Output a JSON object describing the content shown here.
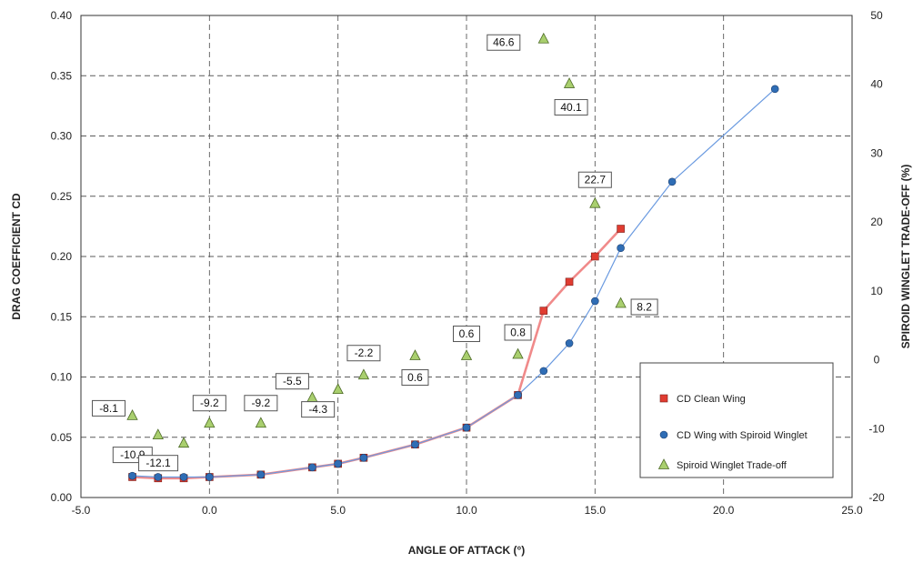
{
  "chart_data": {
    "type": "line",
    "xlabel": "ANGLE OF ATTACK (°)",
    "ylabel": "DRAG COEFFICIENT CD",
    "y2label": "SPIROID WINGLET TRADE-OFF (%)",
    "xlim": [
      -5.0,
      25.0
    ],
    "ylim": [
      0.0,
      0.4
    ],
    "y2lim": [
      -20,
      50
    ],
    "x_ticks": [
      "-5.0",
      "0.0",
      "5.0",
      "10.0",
      "15.0",
      "20.0",
      "25.0"
    ],
    "y_ticks": [
      "0.00",
      "0.05",
      "0.10",
      "0.15",
      "0.20",
      "0.25",
      "0.30",
      "0.35",
      "0.40"
    ],
    "y2_ticks": [
      "-20",
      "-10",
      "0",
      "10",
      "20",
      "30",
      "40",
      "50"
    ],
    "grid": true,
    "legend_position": "bottom-right",
    "series": [
      {
        "name": "CD Clean Wing",
        "axis": "left",
        "color": "#f08a8a",
        "marker_color": "#e03c31",
        "marker": "square",
        "points": [
          [
            -3,
            0.017
          ],
          [
            -2,
            0.016
          ],
          [
            -1,
            0.016
          ],
          [
            0,
            0.017
          ],
          [
            2,
            0.019
          ],
          [
            4,
            0.025
          ],
          [
            5,
            0.028
          ],
          [
            6,
            0.033
          ],
          [
            8,
            0.044
          ],
          [
            10,
            0.058
          ],
          [
            12,
            0.085
          ],
          [
            13,
            0.155
          ],
          [
            14,
            0.179
          ],
          [
            15,
            0.2
          ],
          [
            16,
            0.223
          ]
        ]
      },
      {
        "name": "CD Wing with Spiroid Winglet",
        "axis": "left",
        "color": "#6a9ae0",
        "marker_color": "#2f6db5",
        "marker": "circle",
        "points": [
          [
            -3,
            0.018
          ],
          [
            -2,
            0.017
          ],
          [
            -1,
            0.017
          ],
          [
            0,
            0.017
          ],
          [
            2,
            0.019
          ],
          [
            4,
            0.025
          ],
          [
            5,
            0.028
          ],
          [
            6,
            0.033
          ],
          [
            8,
            0.044
          ],
          [
            10,
            0.058
          ],
          [
            12,
            0.085
          ],
          [
            13,
            0.105
          ],
          [
            14,
            0.128
          ],
          [
            15,
            0.163
          ],
          [
            16,
            0.207
          ],
          [
            18,
            0.262
          ],
          [
            22,
            0.339
          ]
        ]
      },
      {
        "name": "Spiroid Winglet Trade-off",
        "axis": "right",
        "color": "#a9cf6e",
        "marker": "triangle",
        "points": [
          [
            -3,
            -8.1
          ],
          [
            -2,
            -10.9
          ],
          [
            -1,
            -12.1
          ],
          [
            0,
            -9.2
          ],
          [
            2,
            -9.2
          ],
          [
            4,
            -5.5
          ],
          [
            5,
            -4.3
          ],
          [
            6,
            -2.2
          ],
          [
            8,
            0.6
          ],
          [
            10,
            0.6
          ],
          [
            12,
            0.8
          ],
          [
            13,
            46.6
          ],
          [
            14,
            40.1
          ],
          [
            15,
            22.7
          ],
          [
            16,
            8.2
          ]
        ],
        "labels": [
          "-8.1",
          "-10.9",
          "-12.1",
          "-9.2",
          "-9.2",
          "-5.5",
          "-4.3",
          "-2.2",
          "0.6",
          "0.6",
          "0.8",
          "46.6",
          "40.1",
          "22.7",
          "8.2"
        ]
      }
    ]
  }
}
